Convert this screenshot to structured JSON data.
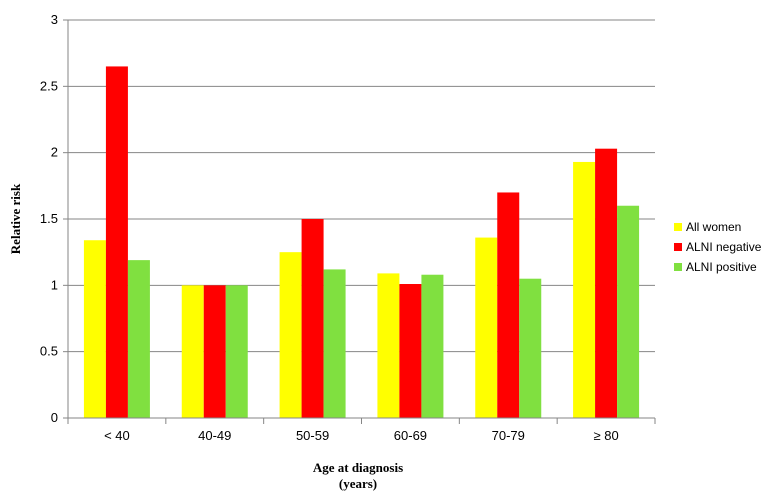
{
  "chart_data": {
    "type": "bar",
    "title": "",
    "xlabel": [
      "Age at diagnosis",
      "(years)"
    ],
    "ylabel": "Relative risk",
    "ylim": [
      0,
      3
    ],
    "yticks": [
      "0",
      "0.5",
      "1",
      "1.5",
      "2",
      "2.5",
      "3"
    ],
    "grid": true,
    "legend_position": "right",
    "categories": [
      "< 40",
      "40-49",
      "50-59",
      "60-69",
      "70-79",
      "≥ 80"
    ],
    "series": [
      {
        "name": "All women",
        "color": "#ffff00",
        "values": [
          1.34,
          1.0,
          1.25,
          1.09,
          1.36,
          1.93
        ]
      },
      {
        "name": "ALNI negative",
        "color": "#ff0000",
        "values": [
          2.65,
          1.0,
          1.5,
          1.01,
          1.7,
          2.03
        ]
      },
      {
        "name": "ALNI positive",
        "color": "#80e040",
        "values": [
          1.19,
          1.0,
          1.12,
          1.08,
          1.05,
          1.6
        ]
      }
    ]
  }
}
